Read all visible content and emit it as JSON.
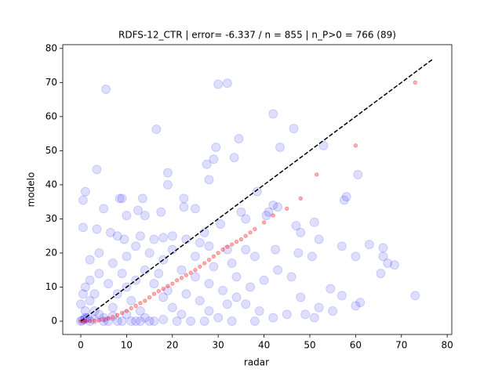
{
  "chart_data": {
    "type": "scatter",
    "title": "RDFS-12_CTR | error= -6.337 / n = 855 | n_P>0 = 766 (89)",
    "x_label": "radar",
    "y_label": "modelo",
    "xlim": [
      -3.94,
      81
    ],
    "ylim": [
      -3.9,
      81.1
    ],
    "xticks": [
      0,
      10,
      20,
      30,
      40,
      50,
      60,
      70,
      80
    ],
    "yticks": [
      0,
      10,
      20,
      30,
      40,
      50,
      60,
      70,
      80
    ],
    "grid": false,
    "series": [
      {
        "color": "#0000ff",
        "marker": "circle",
        "x": [
          30,
          32,
          5.5,
          42,
          46.5,
          16.5,
          34.5,
          53,
          29.5,
          43.5,
          29,
          27.5,
          28,
          33.5,
          3.5,
          60.5,
          19,
          19,
          1,
          9,
          8.5,
          13.5,
          22.5,
          38.5,
          42,
          43,
          57.5,
          58,
          0.5,
          5,
          12.5,
          10,
          14,
          17.5,
          22.5,
          25,
          35,
          40.5,
          41,
          47,
          48,
          51,
          52,
          36,
          30.5,
          0.5,
          3.5,
          6.5,
          8,
          9.5,
          13,
          16,
          18,
          20,
          23,
          26,
          28,
          32,
          36,
          38,
          42.5,
          47.5,
          50.5,
          57,
          60,
          63,
          66,
          66,
          67,
          68.5,
          65.5,
          73,
          61,
          60,
          54.5,
          57,
          52,
          48,
          45,
          42,
          39,
          36,
          34,
          31,
          28,
          25,
          22,
          18,
          15,
          12,
          10,
          7,
          4,
          2,
          1,
          0.5,
          0,
          2,
          3,
          5,
          7,
          8,
          10,
          12,
          14,
          16,
          18,
          20,
          22,
          24,
          26,
          28,
          30,
          32,
          34,
          37,
          40,
          43,
          46,
          49,
          51,
          55,
          6,
          9,
          12,
          15,
          18,
          21,
          27,
          33,
          38,
          2,
          4,
          1,
          3,
          6,
          9,
          11,
          13,
          17,
          19,
          23,
          25,
          29,
          33,
          27,
          20,
          4,
          2,
          1,
          3,
          7,
          10,
          14,
          0,
          0.3,
          0.8,
          1.5,
          5,
          8,
          11,
          13,
          16
        ],
        "y": [
          69.5,
          69.8,
          68,
          60.8,
          56.5,
          56.3,
          53.5,
          51.5,
          51,
          51,
          47.5,
          46,
          41.5,
          48,
          44.5,
          43,
          43.5,
          40,
          38,
          36,
          36,
          36,
          36,
          38,
          34,
          33.5,
          35.5,
          36.5,
          35.5,
          33,
          32.5,
          31,
          31,
          32,
          33.5,
          33,
          32,
          31,
          32,
          28,
          26,
          29,
          24,
          30,
          28.5,
          27.5,
          27,
          26,
          25,
          24,
          25,
          24,
          24.5,
          25,
          24,
          23,
          22,
          21,
          21,
          19,
          21,
          20,
          19,
          22,
          19,
          22.5,
          21.5,
          19,
          17,
          16.5,
          14,
          7.5,
          5.5,
          4.5,
          9.5,
          7.5,
          4,
          7,
          2,
          1,
          3,
          5,
          7,
          9,
          11,
          13,
          15,
          18,
          20,
          22,
          19,
          17,
          14,
          12,
          10,
          8,
          5,
          6,
          3,
          1,
          4,
          8,
          10,
          12,
          15,
          11,
          7,
          4,
          2,
          0,
          6,
          3,
          1,
          5,
          13,
          10,
          12,
          15,
          13,
          2,
          1,
          3,
          0,
          0,
          0,
          0,
          0.5,
          0,
          0,
          0,
          0,
          0,
          2,
          1,
          8,
          11,
          14,
          6,
          3,
          14,
          9,
          8,
          19,
          16,
          17,
          26,
          21,
          20,
          18,
          3,
          0.5,
          1.5,
          2,
          1,
          0,
          0.2,
          0.5,
          1,
          0,
          0,
          0,
          0,
          0
        ]
      },
      {
        "color": "#ff0000",
        "marker": "dot",
        "x": [
          0,
          0.5,
          1,
          2,
          3,
          4,
          5,
          6,
          7,
          8,
          9,
          10,
          11,
          12,
          13,
          14,
          15,
          16,
          17,
          18,
          19,
          20,
          21,
          22,
          23,
          24,
          25,
          26,
          27,
          28,
          29,
          30,
          31,
          32,
          33,
          34,
          35,
          36,
          37,
          38,
          40,
          42,
          45,
          48,
          51.5,
          60,
          73
        ],
        "y": [
          0,
          0,
          0,
          0,
          0.2,
          0.3,
          0.5,
          0.8,
          1.2,
          1.8,
          2.4,
          3,
          3.8,
          4.5,
          5.3,
          6,
          7,
          8,
          8.8,
          9.5,
          10.3,
          11,
          12,
          12.7,
          13.5,
          14.2,
          15,
          16,
          17,
          18,
          19,
          20,
          21,
          21.8,
          22.5,
          23.3,
          24,
          25,
          26,
          27,
          29,
          31,
          33,
          36,
          43,
          51.5,
          70
        ]
      },
      {
        "color": "#000000",
        "marker": "dashed-line",
        "x": [
          0,
          77
        ],
        "y": [
          0,
          77
        ]
      }
    ]
  }
}
